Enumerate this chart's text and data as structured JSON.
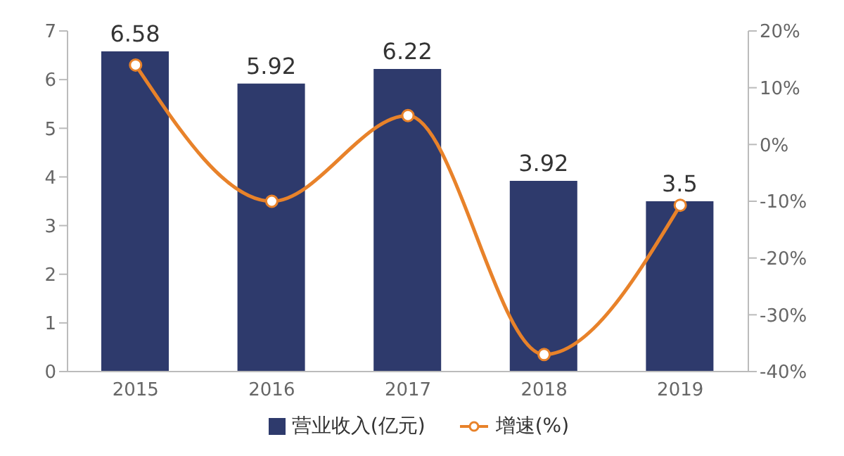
{
  "chart_data": {
    "type": "bar",
    "categories": [
      "2015",
      "2016",
      "2017",
      "2018",
      "2019"
    ],
    "series": [
      {
        "name": "营业收入(亿元)",
        "color": "#2e3a6c",
        "values": [
          6.58,
          5.92,
          6.22,
          3.92,
          3.5
        ]
      },
      {
        "name": "增速(%)",
        "type": "line",
        "axis": "y2",
        "color": "#e8822a",
        "marker": "circle",
        "values": [
          14,
          -10,
          5.1,
          -37,
          -10.7
        ]
      }
    ],
    "ylim": [
      0,
      7
    ],
    "yticks": [
      0,
      1,
      2,
      3,
      4,
      5,
      6,
      7
    ],
    "y2lim": [
      -40,
      20
    ],
    "y2ticks": [
      {
        "value": -40,
        "label": "-40%"
      },
      {
        "value": -30,
        "label": "-30%"
      },
      {
        "value": -20,
        "label": "-20%"
      },
      {
        "value": -10,
        "label": "-10%"
      },
      {
        "value": 0,
        "label": "0%"
      },
      {
        "value": 10,
        "label": "10%"
      },
      {
        "value": 20,
        "label": "20%"
      }
    ],
    "value_labels": [
      "6.58",
      "5.92",
      "6.22",
      "3.92",
      "3.5"
    ],
    "grid": false,
    "legend": "bottom"
  }
}
